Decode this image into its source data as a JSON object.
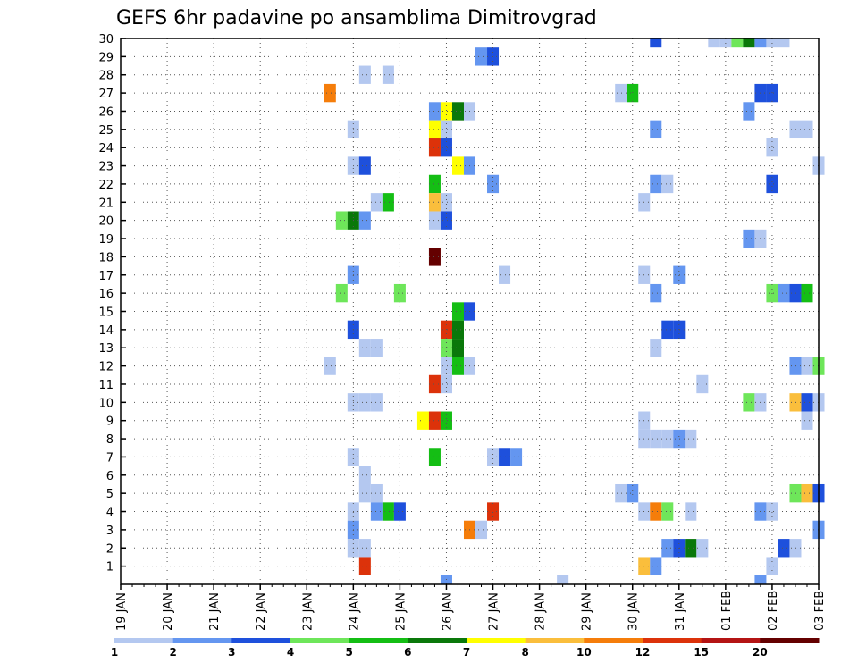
{
  "chart_data": {
    "type": "heatmap",
    "title": "GEFS 6hr padavine po ansamblima Dimitrovgrad",
    "xlabel": "",
    "ylabel": "",
    "x_start": "2024-01-19",
    "x_end": "2024-02-03",
    "x_tick_labels": [
      "19 JAN",
      "20 JAN",
      "21 JAN",
      "22 JAN",
      "23 JAN",
      "24 JAN",
      "25 JAN",
      "26 JAN",
      "27 JAN",
      "28 JAN",
      "29 JAN",
      "30 JAN",
      "31 JAN",
      "01 FEB",
      "02 FEB",
      "03 FEB"
    ],
    "y_ticks": [
      1,
      2,
      3,
      4,
      5,
      6,
      7,
      8,
      9,
      10,
      11,
      12,
      13,
      14,
      15,
      16,
      17,
      18,
      19,
      20,
      21,
      22,
      23,
      24,
      25,
      26,
      27,
      28,
      29,
      30
    ],
    "ylim": [
      0,
      30
    ],
    "grid": true,
    "legend": {
      "placement": "bottom",
      "levels": [
        "1",
        "2",
        "3",
        "4",
        "5",
        "6",
        "7",
        "8",
        "10",
        "12",
        "15",
        "20"
      ],
      "colors": [
        "#b4c8f0",
        "#6496f0",
        "#1e50dc",
        "#6ee65a",
        "#14be14",
        "#0a780a",
        "#ffff00",
        "#fabe3c",
        "#f57d0a",
        "#dc320a",
        "#b41414",
        "#640000"
      ]
    },
    "cells": [
      {
        "member": 30,
        "day": 11.5,
        "class": 2
      },
      {
        "member": 30,
        "day": 12.75,
        "class": 0
      },
      {
        "member": 30,
        "day": 13.0,
        "class": 0
      },
      {
        "member": 30,
        "day": 13.25,
        "class": 3
      },
      {
        "member": 30,
        "day": 13.5,
        "class": 5
      },
      {
        "member": 30,
        "day": 13.75,
        "class": 1
      },
      {
        "member": 30,
        "day": 14.0,
        "class": 0
      },
      {
        "member": 30,
        "day": 14.25,
        "class": 0
      },
      {
        "member": 29,
        "day": 7.75,
        "class": 1
      },
      {
        "member": 29,
        "day": 8.0,
        "class": 2
      },
      {
        "member": 28,
        "day": 5.25,
        "class": 0
      },
      {
        "member": 28,
        "day": 5.75,
        "class": 0
      },
      {
        "member": 27,
        "day": 4.5,
        "class": 8
      },
      {
        "member": 27,
        "day": 10.75,
        "class": 0
      },
      {
        "member": 27,
        "day": 11.0,
        "class": 4
      },
      {
        "member": 27,
        "day": 13.75,
        "class": 2
      },
      {
        "member": 27,
        "day": 14.0,
        "class": 2
      },
      {
        "member": 26,
        "day": 6.75,
        "class": 1
      },
      {
        "member": 26,
        "day": 7.0,
        "class": 6
      },
      {
        "member": 26,
        "day": 7.25,
        "class": 5
      },
      {
        "member": 26,
        "day": 7.5,
        "class": 0
      },
      {
        "member": 26,
        "day": 13.5,
        "class": 1
      },
      {
        "member": 25,
        "day": 5.0,
        "class": 0
      },
      {
        "member": 25,
        "day": 6.75,
        "class": 6
      },
      {
        "member": 25,
        "day": 7.0,
        "class": 0
      },
      {
        "member": 25,
        "day": 11.5,
        "class": 1
      },
      {
        "member": 25,
        "day": 14.5,
        "class": 0
      },
      {
        "member": 25,
        "day": 14.75,
        "class": 0
      },
      {
        "member": 24,
        "day": 6.75,
        "class": 9
      },
      {
        "member": 24,
        "day": 7.0,
        "class": 2
      },
      {
        "member": 24,
        "day": 14.0,
        "class": 0
      },
      {
        "member": 23,
        "day": 5.0,
        "class": 0
      },
      {
        "member": 23,
        "day": 5.25,
        "class": 2
      },
      {
        "member": 23,
        "day": 7.25,
        "class": 6
      },
      {
        "member": 23,
        "day": 7.5,
        "class": 1
      },
      {
        "member": 23,
        "day": 15.0,
        "class": 0
      },
      {
        "member": 22,
        "day": 6.75,
        "class": 4
      },
      {
        "member": 22,
        "day": 8.0,
        "class": 1
      },
      {
        "member": 22,
        "day": 11.5,
        "class": 1
      },
      {
        "member": 22,
        "day": 11.75,
        "class": 0
      },
      {
        "member": 22,
        "day": 14.0,
        "class": 2
      },
      {
        "member": 21,
        "day": 5.5,
        "class": 0
      },
      {
        "member": 21,
        "day": 5.75,
        "class": 4
      },
      {
        "member": 21,
        "day": 6.75,
        "class": 7
      },
      {
        "member": 21,
        "day": 7.0,
        "class": 0
      },
      {
        "member": 21,
        "day": 11.25,
        "class": 0
      },
      {
        "member": 20,
        "day": 4.75,
        "class": 3
      },
      {
        "member": 20,
        "day": 5.0,
        "class": 5
      },
      {
        "member": 20,
        "day": 5.25,
        "class": 1
      },
      {
        "member": 20,
        "day": 6.75,
        "class": 0
      },
      {
        "member": 20,
        "day": 7.0,
        "class": 2
      },
      {
        "member": 19,
        "day": 13.5,
        "class": 1
      },
      {
        "member": 19,
        "day": 13.75,
        "class": 0
      },
      {
        "member": 18,
        "day": 6.75,
        "class": 11
      },
      {
        "member": 17,
        "day": 5.0,
        "class": 1
      },
      {
        "member": 17,
        "day": 8.25,
        "class": 0
      },
      {
        "member": 17,
        "day": 11.25,
        "class": 0
      },
      {
        "member": 17,
        "day": 12.0,
        "class": 1
      },
      {
        "member": 16,
        "day": 4.75,
        "class": 3
      },
      {
        "member": 16,
        "day": 6.0,
        "class": 3
      },
      {
        "member": 16,
        "day": 11.5,
        "class": 1
      },
      {
        "member": 16,
        "day": 14.0,
        "class": 3
      },
      {
        "member": 16,
        "day": 14.25,
        "class": 1
      },
      {
        "member": 16,
        "day": 14.5,
        "class": 2
      },
      {
        "member": 16,
        "day": 14.75,
        "class": 4
      },
      {
        "member": 15,
        "day": 7.25,
        "class": 4
      },
      {
        "member": 15,
        "day": 7.5,
        "class": 2
      },
      {
        "member": 14,
        "day": 5.0,
        "class": 2
      },
      {
        "member": 14,
        "day": 7.0,
        "class": 9
      },
      {
        "member": 14,
        "day": 7.25,
        "class": 5
      },
      {
        "member": 14,
        "day": 11.75,
        "class": 2
      },
      {
        "member": 14,
        "day": 12.0,
        "class": 2
      },
      {
        "member": 13,
        "day": 5.25,
        "class": 0
      },
      {
        "member": 13,
        "day": 5.5,
        "class": 0
      },
      {
        "member": 13,
        "day": 7.0,
        "class": 3
      },
      {
        "member": 13,
        "day": 7.25,
        "class": 5
      },
      {
        "member": 13,
        "day": 11.5,
        "class": 0
      },
      {
        "member": 12,
        "day": 4.5,
        "class": 0
      },
      {
        "member": 12,
        "day": 7.0,
        "class": 0
      },
      {
        "member": 12,
        "day": 7.25,
        "class": 4
      },
      {
        "member": 12,
        "day": 7.5,
        "class": 0
      },
      {
        "member": 12,
        "day": 14.5,
        "class": 1
      },
      {
        "member": 12,
        "day": 14.75,
        "class": 0
      },
      {
        "member": 12,
        "day": 15.0,
        "class": 3
      },
      {
        "member": 11,
        "day": 6.75,
        "class": 9
      },
      {
        "member": 11,
        "day": 7.0,
        "class": 0
      },
      {
        "member": 11,
        "day": 12.5,
        "class": 0
      },
      {
        "member": 10,
        "day": 5.0,
        "class": 0
      },
      {
        "member": 10,
        "day": 5.25,
        "class": 0
      },
      {
        "member": 10,
        "day": 5.5,
        "class": 0
      },
      {
        "member": 10,
        "day": 13.5,
        "class": 3
      },
      {
        "member": 10,
        "day": 13.75,
        "class": 0
      },
      {
        "member": 10,
        "day": 14.5,
        "class": 7
      },
      {
        "member": 10,
        "day": 14.75,
        "class": 2
      },
      {
        "member": 10,
        "day": 15.0,
        "class": 0
      },
      {
        "member": 9,
        "day": 6.5,
        "class": 6
      },
      {
        "member": 9,
        "day": 6.75,
        "class": 9
      },
      {
        "member": 9,
        "day": 7.0,
        "class": 4
      },
      {
        "member": 9,
        "day": 11.25,
        "class": 0
      },
      {
        "member": 9,
        "day": 14.75,
        "class": 0
      },
      {
        "member": 8,
        "day": 11.25,
        "class": 0
      },
      {
        "member": 8,
        "day": 11.5,
        "class": 0
      },
      {
        "member": 8,
        "day": 11.75,
        "class": 0
      },
      {
        "member": 8,
        "day": 12.0,
        "class": 1
      },
      {
        "member": 8,
        "day": 12.25,
        "class": 0
      },
      {
        "member": 7,
        "day": 5.0,
        "class": 0
      },
      {
        "member": 7,
        "day": 6.75,
        "class": 4
      },
      {
        "member": 7,
        "day": 8.0,
        "class": 0
      },
      {
        "member": 7,
        "day": 8.25,
        "class": 2
      },
      {
        "member": 7,
        "day": 8.5,
        "class": 1
      },
      {
        "member": 6,
        "day": 5.25,
        "class": 0
      },
      {
        "member": 5,
        "day": 5.25,
        "class": 0
      },
      {
        "member": 5,
        "day": 5.5,
        "class": 0
      },
      {
        "member": 5,
        "day": 10.75,
        "class": 0
      },
      {
        "member": 5,
        "day": 11.0,
        "class": 1
      },
      {
        "member": 5,
        "day": 14.5,
        "class": 3
      },
      {
        "member": 5,
        "day": 14.75,
        "class": 7
      },
      {
        "member": 5,
        "day": 15.0,
        "class": 2
      },
      {
        "member": 4,
        "day": 5.0,
        "class": 0
      },
      {
        "member": 4,
        "day": 5.5,
        "class": 1
      },
      {
        "member": 4,
        "day": 5.75,
        "class": 4
      },
      {
        "member": 4,
        "day": 6.0,
        "class": 2
      },
      {
        "member": 4,
        "day": 8.0,
        "class": 9
      },
      {
        "member": 4,
        "day": 11.25,
        "class": 0
      },
      {
        "member": 4,
        "day": 11.5,
        "class": 8
      },
      {
        "member": 4,
        "day": 11.75,
        "class": 3
      },
      {
        "member": 4,
        "day": 12.25,
        "class": 0
      },
      {
        "member": 4,
        "day": 13.75,
        "class": 1
      },
      {
        "member": 4,
        "day": 14.0,
        "class": 0
      },
      {
        "member": 3,
        "day": 5.0,
        "class": 1
      },
      {
        "member": 3,
        "day": 7.5,
        "class": 8
      },
      {
        "member": 3,
        "day": 7.75,
        "class": 0
      },
      {
        "member": 3,
        "day": 15.0,
        "class": 1
      },
      {
        "member": 2,
        "day": 5.0,
        "class": 0
      },
      {
        "member": 2,
        "day": 5.25,
        "class": 0
      },
      {
        "member": 2,
        "day": 11.75,
        "class": 1
      },
      {
        "member": 2,
        "day": 12.0,
        "class": 2
      },
      {
        "member": 2,
        "day": 12.25,
        "class": 5
      },
      {
        "member": 2,
        "day": 12.5,
        "class": 0
      },
      {
        "member": 2,
        "day": 14.25,
        "class": 2
      },
      {
        "member": 2,
        "day": 14.5,
        "class": 0
      },
      {
        "member": 1,
        "day": 5.25,
        "class": 9
      },
      {
        "member": 1,
        "day": 11.25,
        "class": 7
      },
      {
        "member": 1,
        "day": 11.5,
        "class": 1
      },
      {
        "member": 1,
        "day": 14.0,
        "class": 0
      },
      {
        "member": 0,
        "day": 7.0,
        "class": 1
      },
      {
        "member": 0,
        "day": 9.5,
        "class": 0
      },
      {
        "member": 0,
        "day": 13.75,
        "class": 1
      }
    ]
  }
}
